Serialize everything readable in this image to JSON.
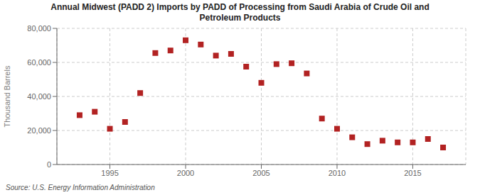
{
  "chart_data": {
    "type": "scatter",
    "title": "Annual Midwest (PADD 2) Imports by PADD of Processing from Saudi Arabia of Crude Oil and\nPetroleum Products",
    "ylabel": "Thousand Barrels",
    "annotations": [
      "Source: U.S. Energy Information Administration"
    ],
    "x": [
      1993,
      1994,
      1995,
      1996,
      1997,
      1998,
      1999,
      2000,
      2001,
      2002,
      2003,
      2004,
      2005,
      2006,
      2007,
      2008,
      2009,
      2010,
      2011,
      2012,
      2013,
      2014,
      2015,
      2016,
      2017
    ],
    "values": [
      29000,
      31000,
      21000,
      25000,
      42000,
      65500,
      67000,
      73000,
      70500,
      64000,
      65000,
      57500,
      48000,
      59000,
      59500,
      53500,
      27000,
      21000,
      16000,
      12000,
      14000,
      13000,
      13000,
      15000,
      10000
    ],
    "color": "#b22222",
    "marker": "square",
    "xlim": [
      1991.5,
      2018.5
    ],
    "xticks": [
      1995,
      2000,
      2005,
      2010,
      2015
    ],
    "ylim": [
      0,
      80000
    ],
    "yticks": [
      0,
      {
        "value": 20000,
        "label": "20,000"
      },
      {
        "value": 40000,
        "label": "40,000"
      },
      {
        "value": 60000,
        "label": "60,000"
      },
      {
        "value": 80000,
        "label": "80,000"
      }
    ],
    "grid": true
  }
}
